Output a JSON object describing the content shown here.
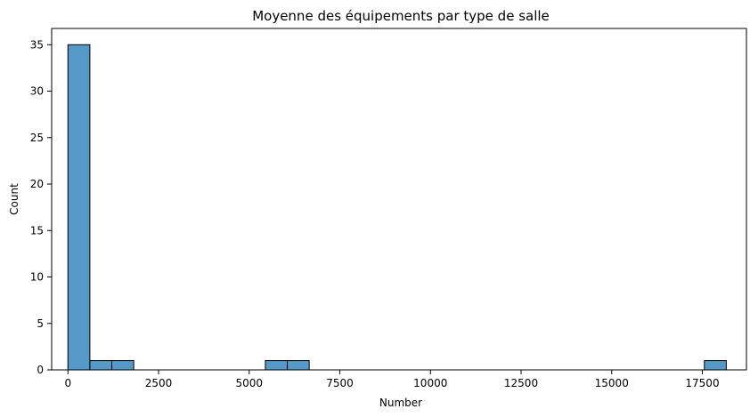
{
  "chart_data": {
    "type": "bar",
    "title": "Moyenne des équipements par type de salle",
    "xlabel": "Number",
    "ylabel": "Count",
    "xlim": [
      -449,
      18716
    ],
    "ylim": [
      0,
      36.75
    ],
    "x_ticks": [
      0,
      2500,
      5000,
      7500,
      10000,
      12500,
      15000,
      17500
    ],
    "y_ticks": [
      0,
      5,
      10,
      15,
      20,
      25,
      30,
      35
    ],
    "bins": [
      {
        "start": 0,
        "end": 605,
        "count": 35
      },
      {
        "start": 605,
        "end": 1210,
        "count": 1
      },
      {
        "start": 1210,
        "end": 1815,
        "count": 1
      },
      {
        "start": 5446,
        "end": 6051,
        "count": 1
      },
      {
        "start": 6051,
        "end": 6656,
        "count": 1
      },
      {
        "start": 17555,
        "end": 18160,
        "count": 1
      }
    ],
    "bar_color": "#5499c7",
    "edge_color": "#000000",
    "grid": false,
    "legend": "none"
  }
}
